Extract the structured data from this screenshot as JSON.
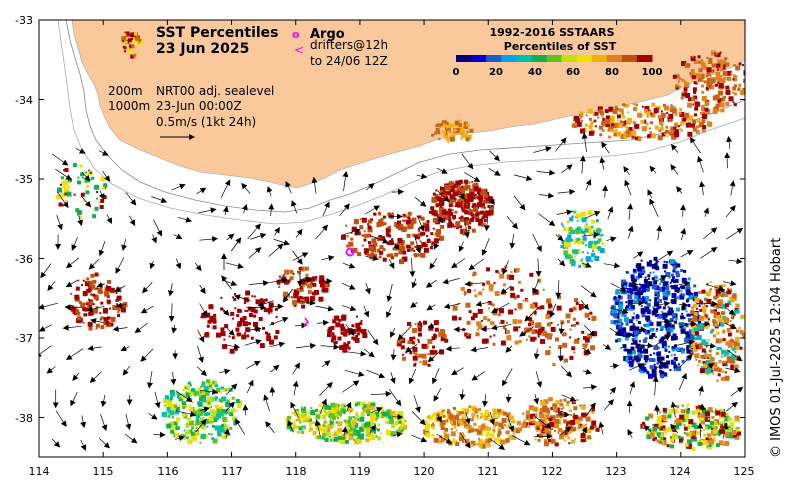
{
  "title": {
    "line1": "SST Percentiles",
    "line2": "23 Jun 2025"
  },
  "legend": {
    "argo_symbol": "o",
    "argo_label": "Argo",
    "drifter_symbol": "<",
    "drifters_line1": "drifters@12h",
    "drifters_line2": "to 24/06 12Z",
    "colorbar_title1": "1992-2016 SSTAARS",
    "colorbar_title2": "Percentiles of SST",
    "colorbar_ticks": [
      "0",
      "20",
      "40",
      "60",
      "80",
      "100"
    ],
    "colorbar_colors": [
      "#00007e",
      "#0000c8",
      "#1e5ad2",
      "#0aa0e6",
      "#00c0b0",
      "#10b050",
      "#60c020",
      "#c0e010",
      "#f0e000",
      "#f0b010",
      "#e08020",
      "#c05010",
      "#a00000"
    ]
  },
  "info": {
    "contour_200": "200m",
    "contour_1000": "1000m",
    "product": "NRT00 adj. sealevel",
    "time": "23-Jun 00:00Z",
    "scale": "0.5m/s (1kt 24h)"
  },
  "axes": {
    "lon_ticks": [
      "114",
      "115",
      "116",
      "117",
      "118",
      "119",
      "120",
      "121",
      "122",
      "123",
      "124",
      "125"
    ],
    "lat_ticks": [
      "-33",
      "-34",
      "-35",
      "-36",
      "-37",
      "-38"
    ]
  },
  "credit": "© IMOS 01-Jul-2025 12:04 Hobart",
  "colors": {
    "land": "#f9c99c",
    "red": "#a00000",
    "orange": "#c86414",
    "blue": "#00007e",
    "green": "#10b050",
    "argo": "#ff00ff"
  }
}
